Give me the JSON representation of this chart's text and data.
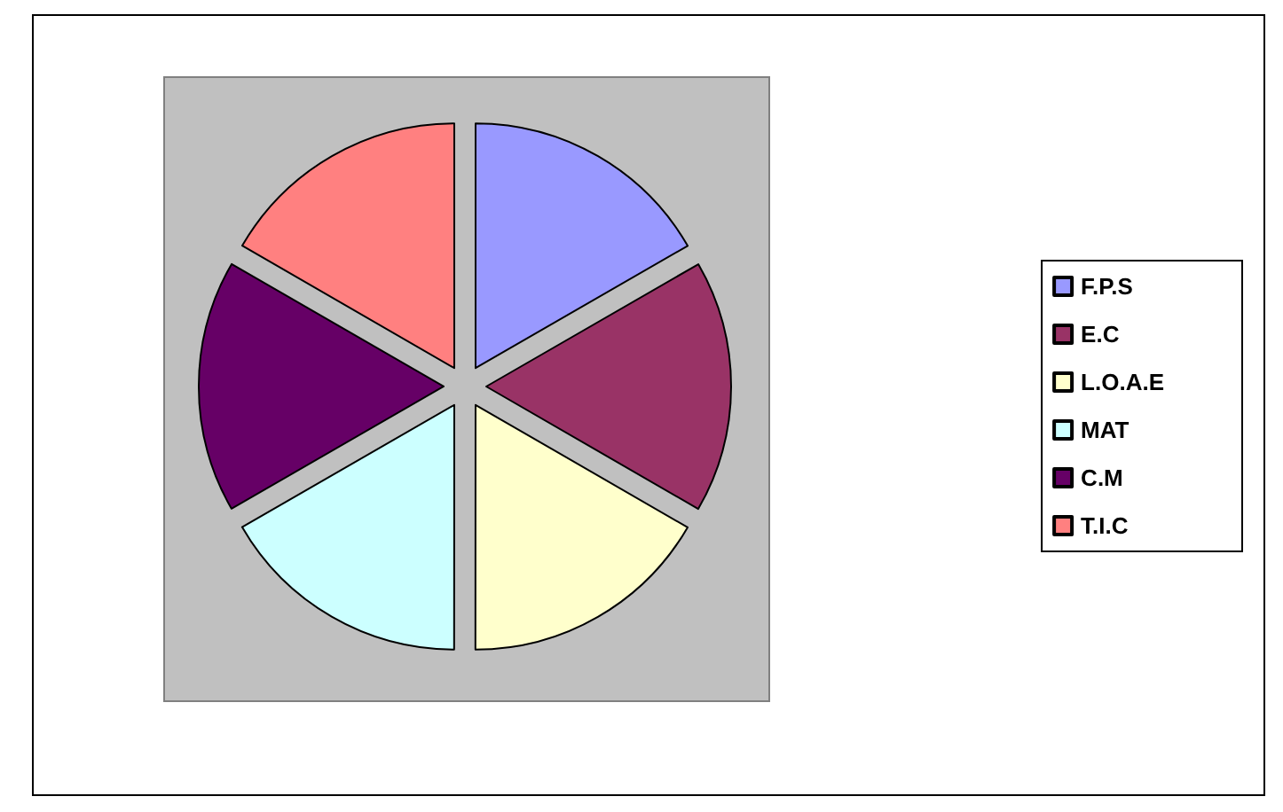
{
  "chart_data": {
    "type": "pie",
    "categories": [
      "F.P.S",
      "E.C",
      "L.O.A.E",
      "MAT",
      "C.M",
      "T.I.C"
    ],
    "values": [
      16.67,
      16.67,
      16.67,
      16.67,
      16.66,
      16.66
    ],
    "colors": [
      "#9999ff",
      "#993366",
      "#ffffcc",
      "#ccffff",
      "#660066",
      "#ff8080"
    ],
    "legend": "right"
  }
}
